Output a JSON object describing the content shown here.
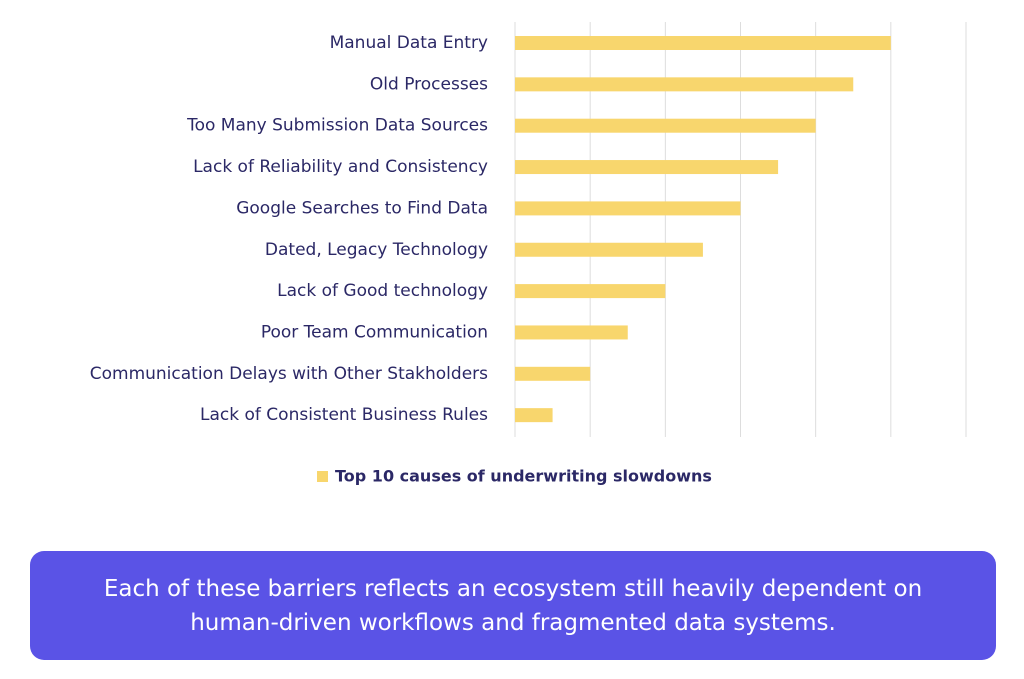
{
  "chart_data": {
    "type": "hbar",
    "categories": [
      "Manual Data Entry",
      "Old Processes",
      "Too Many Submission Data Sources",
      "Lack of Reliability and Consistency",
      "Google Searches to Find Data",
      "Dated, Legacy Technology",
      "Lack of Good technology",
      "Poor Team Communication",
      "Communication Delays with Other Stakholders",
      "Lack of Consistent Business Rules"
    ],
    "series": [
      {
        "name": "Top 10 causes of underwriting slowdowns",
        "color": "#f8d66d",
        "values": [
          5,
          4.5,
          4,
          3.5,
          3,
          2.5,
          2,
          1.5,
          1,
          0.5
        ]
      }
    ],
    "xlim": [
      0,
      6
    ],
    "xticks": [
      0,
      1,
      2,
      3,
      4,
      5,
      6
    ],
    "grid": true,
    "show_tick_labels": false,
    "legend": "bottom"
  },
  "caption": {
    "lines": [
      "Each of these barriers reflects an ecosystem still heavily dependent on",
      "human-driven workflows and fragmented data systems."
    ]
  }
}
